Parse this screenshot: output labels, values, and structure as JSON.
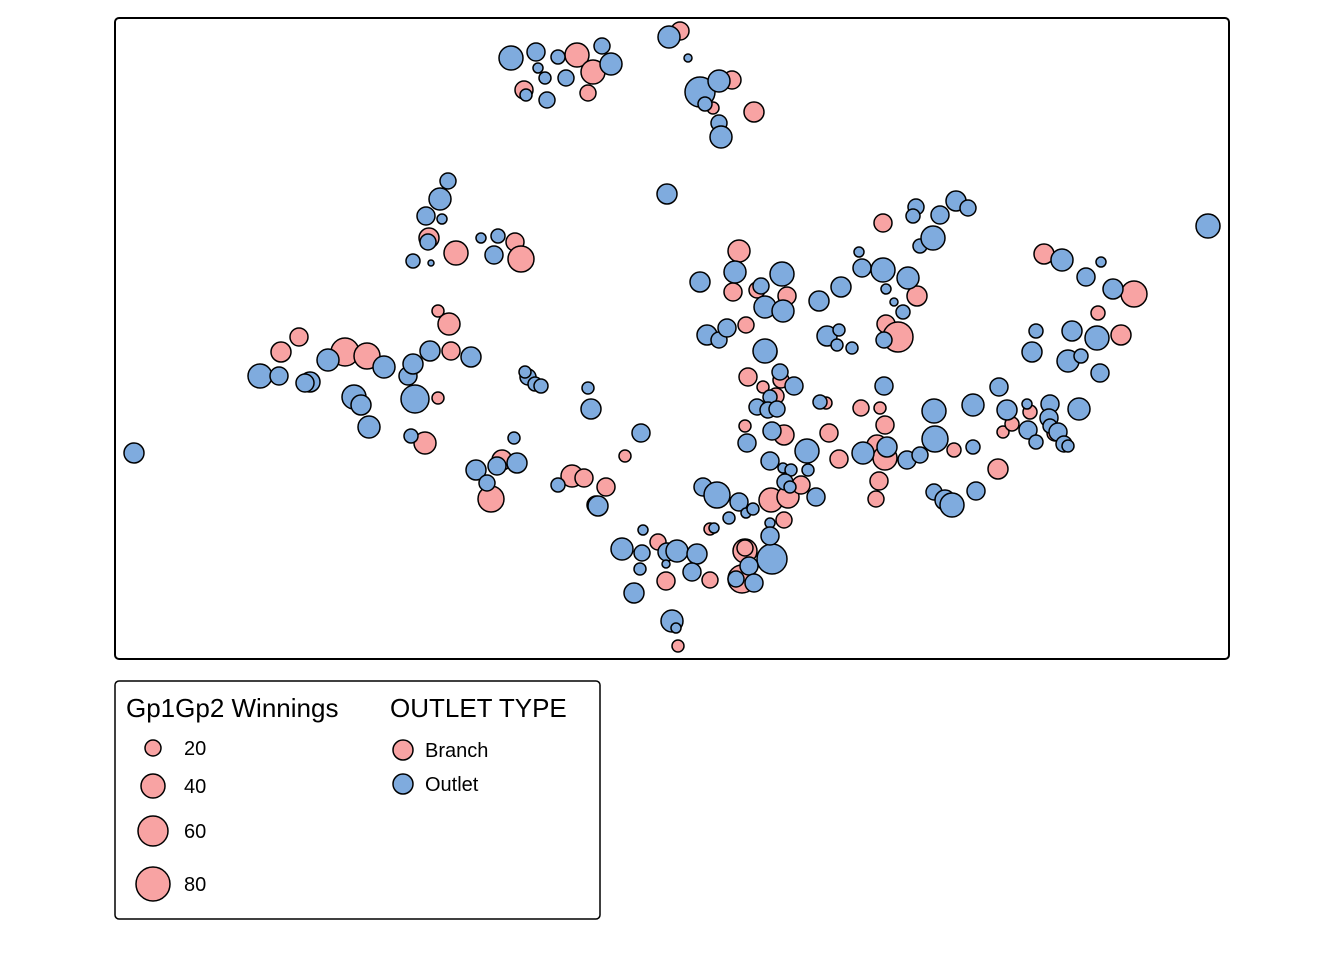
{
  "chart_data": {
    "type": "scatter",
    "title": "",
    "xlabel": "",
    "ylabel": "",
    "grid": false,
    "legend_position": "bottom-left",
    "size_legend": {
      "title": "Gp1Gp2 Winnings",
      "entries": [
        {
          "value": 20,
          "label": "20"
        },
        {
          "value": 40,
          "label": "40"
        },
        {
          "value": 60,
          "label": "60"
        },
        {
          "value": 80,
          "label": "80"
        }
      ]
    },
    "color_legend": {
      "title": "OUTLET TYPE",
      "entries": [
        {
          "name": "Branch",
          "label": "Branch",
          "color": "#F8A3A3"
        },
        {
          "name": "Outlet",
          "label": "Outlet",
          "color": "#7FABDE"
        }
      ]
    },
    "series": [
      {
        "name": "Branch",
        "color": "#F8A3A3",
        "points": [
          [
            680,
            31,
            9
          ],
          [
            577,
            55,
            12
          ],
          [
            593,
            72,
            12
          ],
          [
            588,
            93,
            8
          ],
          [
            732,
            80,
            9
          ],
          [
            713,
            108,
            6
          ],
          [
            754,
            112,
            10
          ],
          [
            524,
            90,
            9
          ],
          [
            883,
            223,
            9
          ],
          [
            739,
            251,
            11
          ],
          [
            784,
            274,
            8
          ],
          [
            733,
            292,
            9
          ],
          [
            757,
            290,
            8
          ],
          [
            787,
            296,
            9
          ],
          [
            746,
            325,
            8
          ],
          [
            748,
            377,
            9
          ],
          [
            781,
            380,
            8
          ],
          [
            776,
            396,
            8
          ],
          [
            917,
            296,
            10
          ],
          [
            886,
            324,
            9
          ],
          [
            898,
            337,
            15
          ],
          [
            1044,
            254,
            10
          ],
          [
            1134,
            294,
            13
          ],
          [
            1098,
            313,
            7
          ],
          [
            1121,
            335,
            10
          ],
          [
            438,
            311,
            6
          ],
          [
            449,
            324,
            11
          ],
          [
            299,
            337,
            9
          ],
          [
            281,
            352,
            10
          ],
          [
            345,
            352,
            14
          ],
          [
            367,
            356,
            13
          ],
          [
            451,
            351,
            9
          ],
          [
            438,
            398,
            6
          ],
          [
            425,
            443,
            11
          ],
          [
            429,
            238,
            10
          ],
          [
            456,
            253,
            12
          ],
          [
            515,
            242,
            9
          ],
          [
            521,
            259,
            13
          ],
          [
            502,
            460,
            10
          ],
          [
            491,
            499,
            13
          ],
          [
            572,
            476,
            11
          ],
          [
            584,
            478,
            9
          ],
          [
            606,
            487,
            9
          ],
          [
            596,
            505,
            9
          ],
          [
            625,
            456,
            6
          ],
          [
            658,
            542,
            8
          ],
          [
            666,
            581,
            9
          ],
          [
            710,
            529,
            6
          ],
          [
            710,
            580,
            8
          ],
          [
            742,
            579,
            14
          ],
          [
            745,
            551,
            12
          ],
          [
            826,
            403,
            6
          ],
          [
            861,
            408,
            8
          ],
          [
            880,
            408,
            6
          ],
          [
            885,
            425,
            9
          ],
          [
            829,
            433,
            9
          ],
          [
            839,
            459,
            9
          ],
          [
            877,
            445,
            10
          ],
          [
            885,
            458,
            12
          ],
          [
            879,
            481,
            9
          ],
          [
            876,
            499,
            8
          ],
          [
            745,
            426,
            6
          ],
          [
            784,
            435,
            10
          ],
          [
            771,
            500,
            12
          ],
          [
            788,
            497,
            11
          ],
          [
            784,
            520,
            8
          ],
          [
            801,
            485,
            9
          ],
          [
            954,
            450,
            7
          ],
          [
            998,
            469,
            10
          ],
          [
            1003,
            432,
            6
          ],
          [
            1030,
            412,
            7
          ],
          [
            1012,
            424,
            7
          ],
          [
            678,
            646,
            6
          ],
          [
            1055,
            433,
            8
          ],
          [
            745,
            548,
            8
          ],
          [
            763,
            387,
            6
          ]
        ]
      },
      {
        "name": "Outlet",
        "color": "#7FABDE",
        "points": [
          [
            511,
            58,
            12
          ],
          [
            536,
            52,
            9
          ],
          [
            558,
            57,
            7
          ],
          [
            538,
            68,
            5
          ],
          [
            545,
            78,
            6
          ],
          [
            566,
            78,
            8
          ],
          [
            611,
            64,
            11
          ],
          [
            602,
            46,
            8
          ],
          [
            526,
            95,
            6
          ],
          [
            547,
            100,
            8
          ],
          [
            669,
            37,
            11
          ],
          [
            688,
            58,
            4
          ],
          [
            700,
            92,
            15
          ],
          [
            719,
            81,
            11
          ],
          [
            705,
            104,
            7
          ],
          [
            719,
            123,
            8
          ],
          [
            721,
            137,
            11
          ],
          [
            667,
            194,
            10
          ],
          [
            448,
            181,
            8
          ],
          [
            440,
            199,
            11
          ],
          [
            426,
            216,
            9
          ],
          [
            442,
            219,
            5
          ],
          [
            428,
            242,
            8
          ],
          [
            413,
            261,
            7
          ],
          [
            431,
            263,
            3
          ],
          [
            481,
            238,
            5
          ],
          [
            498,
            236,
            7
          ],
          [
            494,
            255,
            9
          ],
          [
            956,
            201,
            10
          ],
          [
            940,
            215,
            9
          ],
          [
            968,
            208,
            8
          ],
          [
            916,
            207,
            8
          ],
          [
            913,
            216,
            7
          ],
          [
            920,
            246,
            7
          ],
          [
            933,
            238,
            12
          ],
          [
            862,
            268,
            9
          ],
          [
            859,
            252,
            5
          ],
          [
            883,
            270,
            12
          ],
          [
            908,
            278,
            11
          ],
          [
            886,
            289,
            5
          ],
          [
            894,
            302,
            4
          ],
          [
            903,
            312,
            7
          ],
          [
            841,
            287,
            10
          ],
          [
            819,
            301,
            10
          ],
          [
            700,
            282,
            10
          ],
          [
            735,
            272,
            11
          ],
          [
            761,
            286,
            8
          ],
          [
            782,
            274,
            12
          ],
          [
            765,
            307,
            11
          ],
          [
            783,
            311,
            11
          ],
          [
            707,
            335,
            10
          ],
          [
            719,
            340,
            8
          ],
          [
            727,
            328,
            9
          ],
          [
            767,
            352,
            10
          ],
          [
            827,
            336,
            10
          ],
          [
            839,
            330,
            6
          ],
          [
            837,
            345,
            6
          ],
          [
            852,
            348,
            6
          ],
          [
            884,
            340,
            8
          ],
          [
            1208,
            226,
            12
          ],
          [
            1062,
            260,
            11
          ],
          [
            1086,
            277,
            9
          ],
          [
            1101,
            262,
            5
          ],
          [
            1113,
            289,
            10
          ],
          [
            1036,
            331,
            7
          ],
          [
            1072,
            331,
            10
          ],
          [
            1097,
            338,
            12
          ],
          [
            1032,
            352,
            10
          ],
          [
            1068,
            361,
            11
          ],
          [
            1081,
            356,
            7
          ],
          [
            1100,
            373,
            9
          ],
          [
            884,
            386,
            9
          ],
          [
            780,
            372,
            8
          ],
          [
            794,
            386,
            9
          ],
          [
            820,
            402,
            7
          ],
          [
            770,
            397,
            7
          ],
          [
            757,
            407,
            8
          ],
          [
            768,
            410,
            8
          ],
          [
            777,
            409,
            8
          ],
          [
            934,
            411,
            12
          ],
          [
            973,
            405,
            11
          ],
          [
            999,
            387,
            9
          ],
          [
            1007,
            410,
            10
          ],
          [
            1027,
            404,
            5
          ],
          [
            1050,
            404,
            9
          ],
          [
            1049,
            418,
            9
          ],
          [
            1079,
            409,
            11
          ],
          [
            1028,
            430,
            9
          ],
          [
            1036,
            442,
            7
          ],
          [
            1050,
            426,
            7
          ],
          [
            1058,
            432,
            9
          ],
          [
            1064,
            444,
            8
          ],
          [
            1068,
            446,
            6
          ],
          [
            935,
            439,
            13
          ],
          [
            887,
            447,
            10
          ],
          [
            863,
            453,
            11
          ],
          [
            907,
            460,
            9
          ],
          [
            920,
            455,
            8
          ],
          [
            973,
            447,
            7
          ],
          [
            976,
            491,
            9
          ],
          [
            934,
            492,
            8
          ],
          [
            945,
            500,
            10
          ],
          [
            952,
            505,
            12
          ],
          [
            772,
            431,
            9
          ],
          [
            807,
            451,
            12
          ],
          [
            747,
            443,
            9
          ],
          [
            770,
            461,
            9
          ],
          [
            783,
            468,
            5
          ],
          [
            791,
            470,
            6
          ],
          [
            785,
            482,
            8
          ],
          [
            790,
            487,
            6
          ],
          [
            816,
            497,
            9
          ],
          [
            808,
            470,
            6
          ],
          [
            703,
            487,
            9
          ],
          [
            717,
            495,
            13
          ],
          [
            739,
            502,
            9
          ],
          [
            746,
            513,
            5
          ],
          [
            753,
            509,
            6
          ],
          [
            729,
            518,
            6
          ],
          [
            770,
            523,
            5
          ],
          [
            772,
            559,
            15
          ],
          [
            749,
            566,
            9
          ],
          [
            736,
            579,
            8
          ],
          [
            754,
            583,
            9
          ],
          [
            770,
            536,
            9
          ],
          [
            643,
            530,
            5
          ],
          [
            622,
            549,
            11
          ],
          [
            642,
            553,
            8
          ],
          [
            667,
            552,
            9
          ],
          [
            677,
            551,
            11
          ],
          [
            697,
            554,
            10
          ],
          [
            692,
            572,
            9
          ],
          [
            640,
            569,
            6
          ],
          [
            666,
            564,
            4
          ],
          [
            634,
            593,
            10
          ],
          [
            672,
            621,
            11
          ],
          [
            260,
            376,
            12
          ],
          [
            279,
            376,
            9
          ],
          [
            310,
            382,
            10
          ],
          [
            305,
            383,
            9
          ],
          [
            328,
            360,
            11
          ],
          [
            354,
            397,
            12
          ],
          [
            361,
            405,
            10
          ],
          [
            369,
            427,
            11
          ],
          [
            384,
            367,
            11
          ],
          [
            408,
            376,
            9
          ],
          [
            415,
            399,
            14
          ],
          [
            413,
            364,
            10
          ],
          [
            411,
            436,
            7
          ],
          [
            430,
            351,
            10
          ],
          [
            471,
            357,
            10
          ],
          [
            528,
            377,
            8
          ],
          [
            535,
            384,
            7
          ],
          [
            525,
            372,
            6
          ],
          [
            541,
            386,
            7
          ],
          [
            514,
            438,
            6
          ],
          [
            476,
            470,
            10
          ],
          [
            497,
            466,
            9
          ],
          [
            487,
            483,
            8
          ],
          [
            517,
            463,
            10
          ],
          [
            558,
            485,
            7
          ],
          [
            591,
            409,
            10
          ],
          [
            588,
            388,
            6
          ],
          [
            641,
            433,
            9
          ],
          [
            598,
            506,
            10
          ],
          [
            134,
            453,
            10
          ],
          [
            676,
            628,
            5
          ],
          [
            765,
            351,
            12
          ],
          [
            714,
            528,
            5
          ]
        ]
      }
    ]
  }
}
